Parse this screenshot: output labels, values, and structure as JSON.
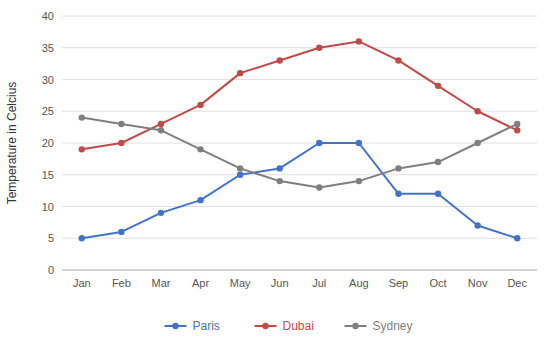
{
  "chart_data": {
    "type": "line",
    "categories": [
      "Jan",
      "Feb",
      "Mar",
      "Apr",
      "May",
      "Jun",
      "Jul",
      "Aug",
      "Sep",
      "Oct",
      "Nov",
      "Dec"
    ],
    "series": [
      {
        "name": "Paris",
        "color": "#4472C4",
        "values": [
          5,
          6,
          9,
          11,
          15,
          16,
          20,
          20,
          12,
          12,
          7,
          5
        ]
      },
      {
        "name": "Dubai",
        "color": "#BE4B48",
        "values": [
          19,
          20,
          23,
          26,
          31,
          33,
          35,
          36,
          33,
          29,
          25,
          22
        ]
      },
      {
        "name": "Sydney",
        "color": "#7F7F7F",
        "values": [
          24,
          23,
          22,
          19,
          16,
          14,
          13,
          14,
          16,
          17,
          20,
          23
        ]
      }
    ],
    "y_label": "Temperature in Celcius",
    "ylim": [
      0,
      40
    ],
    "yticks": [
      0,
      5,
      10,
      15,
      20,
      25,
      30,
      35,
      40
    ],
    "grid": true,
    "legend": "bottom",
    "marker": "circle"
  }
}
